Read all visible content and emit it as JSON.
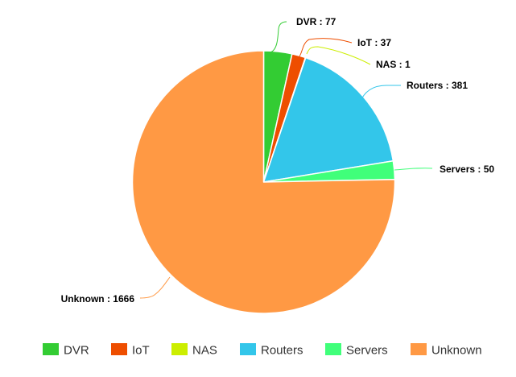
{
  "chart_data": {
    "type": "pie",
    "title": "",
    "categories": [
      "DVR",
      "IoT",
      "NAS",
      "Routers",
      "Servers",
      "Unknown"
    ],
    "values": [
      77,
      37,
      1,
      381,
      50,
      1666
    ],
    "colors": [
      "#33cc33",
      "#ee4e00",
      "#ccee00",
      "#33c6ea",
      "#40ff7a",
      "#ff9944"
    ],
    "data_labels": [
      "DVR : 77",
      "IoT : 37",
      "NAS : 1",
      "Routers : 381",
      "Servers : 50",
      "Unknown : 1666"
    ],
    "legend": {
      "placement": "bottom",
      "entries": [
        "DVR",
        "IoT",
        "NAS",
        "Routers",
        "Servers",
        "Unknown"
      ]
    },
    "start_angle": "12 o'clock",
    "direction": "clockwise"
  }
}
